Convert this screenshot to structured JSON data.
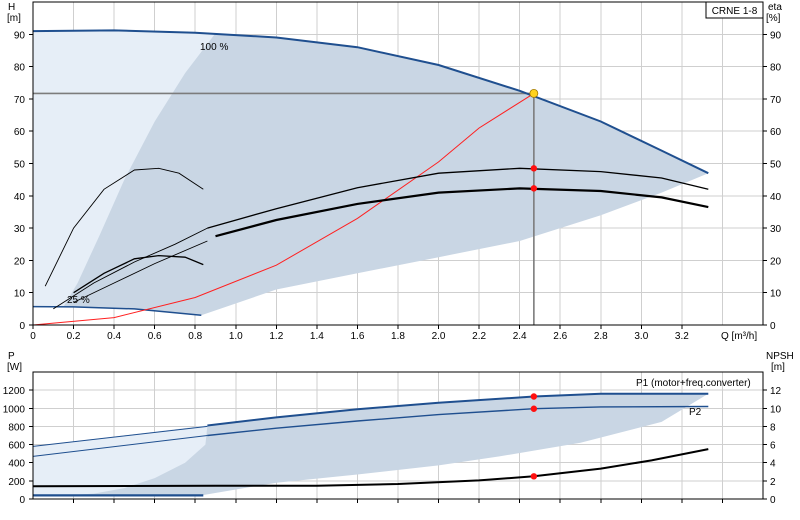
{
  "chart_data": [
    {
      "type": "line",
      "title": "CRNE 1-8",
      "xlabel": "Q [m³/h]",
      "ylabel_left": [
        "H",
        "[m]"
      ],
      "ylabel_right": [
        "eta",
        "[%]"
      ],
      "xlim": [
        0,
        3.6
      ],
      "ylim": [
        0,
        100
      ],
      "x_ticks": [
        "0",
        "0.2",
        "0.4",
        "0.6",
        "0.8",
        "1.0",
        "1.2",
        "1.4",
        "1.6",
        "1.8",
        "2.0",
        "2.2",
        "2.4",
        "2.6",
        "2.8",
        "3.0",
        "3.2"
      ],
      "y_ticks": [
        "0",
        "10",
        "20",
        "30",
        "40",
        "50",
        "60",
        "70",
        "80",
        "90"
      ],
      "grid": true,
      "annotations": [
        "100 %",
        "25 %"
      ],
      "duty_point": {
        "x": 2.47,
        "y": 71.7
      },
      "speed_100_curve": [
        [
          0,
          91
        ],
        [
          0.4,
          91.2
        ],
        [
          0.8,
          90.5
        ],
        [
          1.2,
          89
        ],
        [
          1.6,
          86
        ],
        [
          2.0,
          80.5
        ],
        [
          2.4,
          72.5
        ],
        [
          2.8,
          63
        ],
        [
          3.1,
          54
        ],
        [
          3.33,
          47
        ]
      ],
      "speed_25_curve": [
        [
          0,
          5.7
        ],
        [
          0.2,
          5.6
        ],
        [
          0.5,
          5
        ],
        [
          0.83,
          3
        ]
      ],
      "system_curve": [
        [
          0,
          0
        ],
        [
          0.4,
          2.3
        ],
        [
          0.8,
          8.5
        ],
        [
          1.2,
          18.5
        ],
        [
          1.6,
          33
        ],
        [
          2.0,
          50.5
        ],
        [
          2.2,
          61
        ],
        [
          2.47,
          71.7
        ]
      ],
      "eta_pump": [
        [
          0.06,
          12
        ],
        [
          0.2,
          30
        ],
        [
          0.35,
          42
        ],
        [
          0.5,
          48
        ],
        [
          0.62,
          48.5
        ],
        [
          0.72,
          47
        ],
        [
          0.84,
          42
        ]
      ],
      "eta_total_25": [
        [
          0.2,
          10
        ],
        [
          0.35,
          16
        ],
        [
          0.5,
          20.5
        ],
        [
          0.62,
          21.5
        ],
        [
          0.75,
          21
        ],
        [
          0.84,
          18.7
        ]
      ],
      "eta_pump_speed_left": [
        [
          0.1,
          5
        ],
        [
          0.3,
          13
        ],
        [
          0.5,
          19.5
        ],
        [
          0.7,
          25
        ],
        [
          0.86,
          30
        ]
      ],
      "eta_pump_speed": [
        [
          0.86,
          30
        ],
        [
          1.2,
          36
        ],
        [
          1.6,
          42.5
        ],
        [
          2.0,
          47
        ],
        [
          2.4,
          48.5
        ],
        [
          2.8,
          47.5
        ],
        [
          3.1,
          45.5
        ],
        [
          3.33,
          42
        ]
      ],
      "eta_pump_dot": {
        "x": 2.47,
        "y": 48.5
      },
      "eta_total_left": [
        [
          0.2,
          7
        ],
        [
          0.4,
          13
        ],
        [
          0.6,
          19
        ],
        [
          0.86,
          26
        ]
      ],
      "eta_total": [
        [
          0.9,
          27.5
        ],
        [
          1.2,
          32.5
        ],
        [
          1.6,
          37.5
        ],
        [
          2.0,
          41
        ],
        [
          2.4,
          42.3
        ],
        [
          2.8,
          41.5
        ],
        [
          3.1,
          39.5
        ],
        [
          3.33,
          36.5
        ]
      ],
      "eta_total_dot": {
        "x": 2.47,
        "y": 42.3
      },
      "envelope_upper": [
        [
          0,
          91
        ],
        [
          0.4,
          91.2
        ],
        [
          0.8,
          90.5
        ],
        [
          1.2,
          89
        ],
        [
          1.6,
          86
        ],
        [
          2.0,
          80.5
        ],
        [
          2.4,
          72.5
        ],
        [
          2.8,
          63
        ],
        [
          3.1,
          54
        ],
        [
          3.33,
          47
        ]
      ],
      "envelope_lower": [
        [
          3.33,
          47
        ],
        [
          3.1,
          41
        ],
        [
          2.8,
          34
        ],
        [
          2.4,
          26
        ],
        [
          2.0,
          21
        ],
        [
          1.6,
          16
        ],
        [
          1.2,
          11
        ],
        [
          0.83,
          3
        ],
        [
          0.5,
          5
        ],
        [
          0.2,
          5.6
        ],
        [
          0,
          5.7
        ]
      ],
      "light_region": [
        [
          0,
          91
        ],
        [
          0.4,
          91.2
        ],
        [
          0.9,
          90.3
        ],
        [
          0.75,
          78
        ],
        [
          0.6,
          63
        ],
        [
          0.45,
          45
        ],
        [
          0.33,
          28
        ],
        [
          0.22,
          13
        ],
        [
          0.15,
          5.6
        ],
        [
          0,
          5.7
        ]
      ]
    },
    {
      "type": "line",
      "xlim": [
        0,
        3.6
      ],
      "ylim_left": [
        0,
        1400
      ],
      "ylim_right": [
        0,
        14
      ],
      "ylabel_left": [
        "P",
        "[W]"
      ],
      "ylabel_right": [
        "NPSH",
        "[m]"
      ],
      "y_ticks_left": [
        "0",
        "200",
        "400",
        "600",
        "800",
        "1000",
        "1200"
      ],
      "y_ticks_right": [
        "0",
        "2",
        "4",
        "6",
        "8",
        "10",
        "12"
      ],
      "grid": true,
      "series": [
        {
          "name": "P1 (motor+freq.converter)",
          "points_left": [
            [
              0,
              580
            ],
            [
              0.86,
              800
            ]
          ],
          "points": [
            [
              0.86,
              810
            ],
            [
              1.2,
              900
            ],
            [
              1.6,
              990
            ],
            [
              2.0,
              1060
            ],
            [
              2.47,
              1130
            ],
            [
              2.8,
              1160
            ],
            [
              3.33,
              1160
            ]
          ],
          "dot": {
            "x": 2.47,
            "y": 1130
          }
        },
        {
          "name": "P2",
          "points_left": [
            [
              0,
              470
            ],
            [
              0.86,
              700
            ]
          ],
          "points": [
            [
              0.86,
              700
            ],
            [
              1.2,
              780
            ],
            [
              1.6,
              860
            ],
            [
              2.0,
              930
            ],
            [
              2.47,
              995
            ],
            [
              2.8,
              1015
            ],
            [
              3.33,
              1020
            ]
          ],
          "dot": {
            "x": 2.47,
            "y": 995
          }
        },
        {
          "name": "",
          "axis": "right",
          "points": [
            [
              0.9,
              1.45
            ],
            [
              1.4,
              1.47
            ],
            [
              1.8,
              1.65
            ],
            [
              2.2,
              2.05
            ],
            [
              2.47,
              2.5
            ],
            [
              2.8,
              3.35
            ],
            [
              3.05,
              4.25
            ],
            [
              3.33,
              5.5
            ]
          ],
          "dot": {
            "x": 2.47,
            "y": 2.5
          }
        },
        {
          "name": "",
          "axis": "right",
          "points": [
            [
              0,
              1.4
            ],
            [
              0.9,
              1.45
            ]
          ]
        },
        {
          "name": "",
          "axis": "left",
          "points": [
            [
              0,
              40
            ],
            [
              0.84,
              40
            ]
          ]
        }
      ],
      "envelope": [
        [
          0,
          580
        ],
        [
          0.86,
          810
        ],
        [
          1.2,
          900
        ],
        [
          1.6,
          990
        ],
        [
          2.0,
          1060
        ],
        [
          2.47,
          1130
        ],
        [
          2.8,
          1160
        ],
        [
          3.33,
          1160
        ],
        [
          3.1,
          850
        ],
        [
          2.7,
          620
        ],
        [
          2.3,
          470
        ],
        [
          2.0,
          370
        ],
        [
          1.6,
          270
        ],
        [
          1.2,
          180
        ],
        [
          0.83,
          40
        ],
        [
          0,
          40
        ]
      ],
      "light_region": [
        [
          0,
          580
        ],
        [
          0.86,
          810
        ],
        [
          0.85,
          600
        ],
        [
          0.75,
          400
        ],
        [
          0.6,
          230
        ],
        [
          0.45,
          120
        ],
        [
          0.3,
          60
        ],
        [
          0.15,
          40
        ],
        [
          0,
          40
        ]
      ]
    }
  ]
}
